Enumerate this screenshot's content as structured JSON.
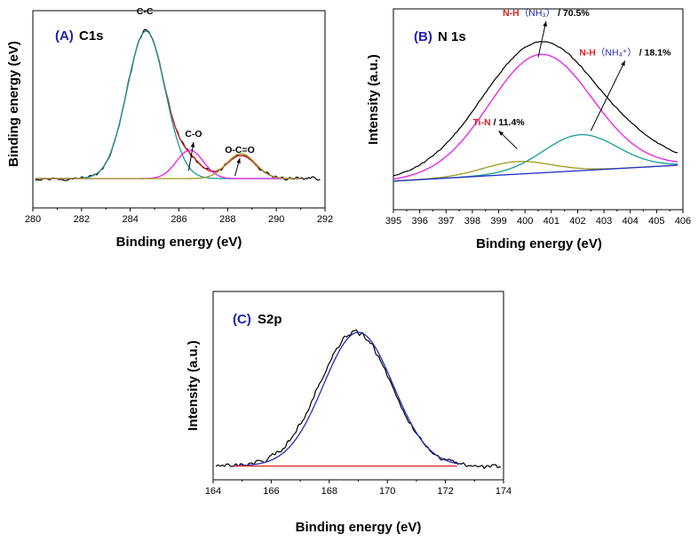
{
  "colors": {
    "accent_blue": "#1f1fb4",
    "label_red": "#e0201c",
    "raw": "#000000",
    "cc": "#1a9a9a",
    "co": "#e81ee8",
    "ococ": "#9a9a22",
    "envelope": "#d42020",
    "nh3": "#e81ee8",
    "nh4": "#1a9a9a",
    "tin": "#9a9a22",
    "baseline_n": "#2030c0",
    "s_fit": "#1f2fb0",
    "s_baseline": "#e02020"
  },
  "chart_data": [
    {
      "id": "A",
      "type": "line",
      "panel_letter": "(A)",
      "panel_name": "C1s",
      "xlabel": "Binding energy (eV)",
      "ylabel": "Binding energy (eV)",
      "xlim": [
        280,
        292
      ],
      "ylim": [
        0,
        1
      ],
      "xticks": [
        "280",
        "282",
        "284",
        "286",
        "288",
        "290",
        "292"
      ],
      "annotations": [
        {
          "text": "C-C",
          "x": 284.6,
          "y": 1.03
        },
        {
          "text": "C-O",
          "x": 286.6,
          "y": 0.34,
          "arrow_to": [
            286.4,
            0.16
          ]
        },
        {
          "text": "O-C=O",
          "x": 288.5,
          "y": 0.25,
          "arrow_to": [
            288.3,
            0.13
          ]
        }
      ],
      "series": [
        {
          "name": "raw",
          "color": "#000000",
          "noise": 0.012,
          "x_range": [
            280.1,
            291.8
          ],
          "baseline": 0.115,
          "peaks": [
            [
              284.65,
              0.83,
              0.78
            ],
            [
              286.5,
              0.085,
              0.5
            ],
            [
              288.55,
              0.13,
              0.6
            ]
          ]
        },
        {
          "name": "envelope",
          "color": "#d42020",
          "x_range": [
            280.1,
            291.0
          ],
          "baseline": 0.115,
          "peaks": [
            [
              284.65,
              0.83,
              0.78
            ],
            [
              286.5,
              0.085,
              0.5
            ],
            [
              288.55,
              0.13,
              0.6
            ]
          ]
        },
        {
          "name": "C-C",
          "color": "#1a9a9a",
          "x_range": [
            280.1,
            291.0
          ],
          "baseline": 0.115,
          "peaks": [
            [
              284.65,
              0.83,
              0.78
            ]
          ]
        },
        {
          "name": "C-O",
          "color": "#e81ee8",
          "x_range": [
            280.1,
            291.0
          ],
          "baseline": 0.115,
          "peaks": [
            [
              286.45,
              0.16,
              0.55
            ]
          ]
        },
        {
          "name": "O-C=O",
          "color": "#9a9a22",
          "x_range": [
            280.1,
            291.0
          ],
          "baseline": 0.115,
          "peaks": [
            [
              288.55,
              0.14,
              0.6
            ]
          ]
        }
      ]
    },
    {
      "id": "B",
      "type": "line",
      "panel_letter": "(B)",
      "panel_name": "N 1s",
      "xlabel": "Binding energy (eV)",
      "ylabel": "Intensity (a.u.)",
      "xlim": [
        395,
        406
      ],
      "ylim": [
        0,
        1
      ],
      "xticks": [
        "395",
        "396",
        "397",
        "398",
        "399",
        "400",
        "401",
        "402",
        "403",
        "404",
        "405",
        "406"
      ],
      "annotations": [
        {
          "text": "Ti-N / 11.4%",
          "x": 399.0,
          "y": 0.4,
          "arrow_to": [
            399.7,
            0.28
          ]
        },
        {
          "text": "N-H（NH₃）/ 70.5%",
          "x": 400.8,
          "y": 1.01,
          "arrow_to": [
            400.5,
            0.79
          ]
        },
        {
          "text": "N-H（NH₄⁺）/ 18.1%",
          "x": 403.8,
          "y": 0.79,
          "arrow_to": [
            402.5,
            0.38
          ]
        }
      ],
      "series": [
        {
          "name": "raw",
          "color": "#000000",
          "noise": 0.004,
          "x_range": [
            395.0,
            405.8
          ],
          "baseline": 0.1,
          "peaks": [
            [
              400.6,
              0.73,
              2.2
            ],
            [
              404.5,
              0.04,
              1.2
            ]
          ]
        },
        {
          "name": "N-H (NH3)",
          "color": "#e81ee8",
          "x_range": [
            395.0,
            405.8
          ],
          "baseline": 0.1,
          "peaks": [
            [
              400.6,
              0.66,
              1.95
            ]
          ]
        },
        {
          "name": "N-H (NH4+)",
          "color": "#1a9a9a",
          "x_range": [
            395.0,
            405.8
          ],
          "baseline": 0.1,
          "peaks": [
            [
              402.1,
              0.2,
              1.4
            ]
          ]
        },
        {
          "name": "Ti-N",
          "color": "#9a9a22",
          "x_range": [
            395.0,
            405.8
          ],
          "baseline": 0.1,
          "peaks": [
            [
              399.7,
              0.07,
              1.3
            ]
          ]
        },
        {
          "name": "background",
          "color": "#2030c0",
          "x_range": [
            395.0,
            405.8
          ],
          "baseline": 0.1,
          "peaks": []
        }
      ]
    },
    {
      "id": "C",
      "type": "line",
      "panel_letter": "(C)",
      "panel_name": "S2p",
      "xlabel": "Binding energy (eV)",
      "ylabel": "Intensity (a.u.)",
      "xlim": [
        164,
        174
      ],
      "ylim": [
        0,
        1
      ],
      "xticks": [
        "164",
        "166",
        "168",
        "170",
        "172",
        "174"
      ],
      "annotations": [],
      "series": [
        {
          "name": "raw",
          "color": "#000000",
          "noise": 0.018,
          "x_range": [
            164.1,
            173.9
          ],
          "baseline": 0.04,
          "peaks": [
            [
              168.9,
              0.8,
              1.25
            ]
          ]
        },
        {
          "name": "fit",
          "color": "#1f2fb0",
          "x_range": [
            164.7,
            172.4
          ],
          "baseline": 0.04,
          "peaks": [
            [
              169.0,
              0.8,
              1.2
            ]
          ]
        },
        {
          "name": "baseline",
          "color": "#e02020",
          "x_range": [
            164.7,
            172.4
          ],
          "baseline": 0.04,
          "peaks": []
        }
      ]
    }
  ]
}
